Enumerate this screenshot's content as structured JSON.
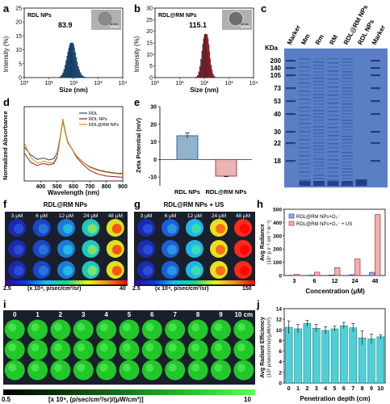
{
  "panels": {
    "a": "a",
    "b": "b",
    "c": "c",
    "d": "d",
    "e": "e",
    "f": "f",
    "g": "g",
    "h": "h",
    "i": "i",
    "j": "j"
  },
  "a": {
    "title": "RDL NPs",
    "peak_label": "83.9",
    "scale_bar": "50 nm",
    "ylabel": "Intensity (%)",
    "xlabel": "Size (nm)",
    "bar_color": "#1f4e79"
  },
  "b": {
    "title": "RDL@RM NPs",
    "peak_label": "115.1",
    "scale_bar": "50 nm",
    "ylabel": "Intensity (%)",
    "xlabel": "Size (nm)",
    "bar_color": "#9b1c1c"
  },
  "c": {
    "kda_label": "KDa",
    "lanes": [
      "Marker",
      "Mm",
      "Rm",
      "RM",
      "RDL@RM NPs",
      "RDL NPs",
      "Marker"
    ],
    "markers": [
      "200",
      "140",
      "105",
      "73",
      "53",
      "40",
      "30",
      "22",
      "18"
    ],
    "gel_color": "#5b7fc4"
  },
  "d": {
    "ylabel": "Normalized Absorbance",
    "xlabel": "Wavelength (nm)",
    "legend": [
      "RDL",
      "RDL NPs",
      "RDL@RM NPs"
    ],
    "colors": [
      "#1f4e79",
      "#9b1c1c",
      "#e08b00"
    ]
  },
  "e": {
    "ylabel": "Zeta Potential (mV)",
    "categories": [
      "RDL NPs",
      "RDL@RM NPs"
    ]
  },
  "f": {
    "title": "RDL@RM NPs",
    "conc_labels": [
      "3 μM",
      "6 μM",
      "12 μM",
      "24 μM",
      "48 μM"
    ],
    "cb_min": "2.5",
    "cb_max": "40",
    "cb_unit": "(x 10⁴, p/sec/cm²/sr)"
  },
  "g": {
    "title": "RDL@RM NPs + US",
    "conc_labels": [
      "3 μM",
      "6 μM",
      "12 μM",
      "24 μM",
      "48 μM"
    ],
    "cb_min": "2.5",
    "cb_max": "150",
    "cb_unit": "(x 10⁴, p/sec/cm²/sr)"
  },
  "h": {
    "ylabel_1": "Avg Radiance",
    "ylabel_2": "(10⁴ p s⁻¹ cm⁻² sr⁻¹)",
    "xlabel": "Concentration (μM)",
    "legend": [
      "RDL@RM NPs+O₂⁻",
      "RDL@RM NPs+O₂⁻ + US"
    ]
  },
  "i": {
    "depth_labels": [
      "0",
      "1",
      "2",
      "3",
      "4",
      "5",
      "6",
      "7",
      "8",
      "9",
      "10 cm"
    ],
    "cb_min": "0.5",
    "cb_max": "10",
    "cb_unit": "[x 10⁹, (p/sec/cm²/sr)/(μW/cm²)]"
  },
  "j": {
    "ylabel_1": "Avg Radiant Efficiency",
    "ylabel_2": "(10⁹ p/sec/cm²/sr)/(μW/cm²)",
    "xlabel": "Penetration depth (cm)"
  },
  "chart_data": [
    {
      "type": "bar",
      "panel": "a",
      "x_scale": "log",
      "xlim": [
        1,
        10000
      ],
      "ylim": [
        0,
        25
      ],
      "x": [
        30,
        35,
        40,
        45,
        50,
        55,
        60,
        65,
        70,
        75,
        80,
        84,
        90,
        95,
        100,
        110,
        120,
        130,
        145,
        160,
        180,
        200,
        230,
        260,
        300
      ],
      "values": [
        0.3,
        0.8,
        1.7,
        3.0,
        4.5,
        6.2,
        7.8,
        9.2,
        10.5,
        11.5,
        12.2,
        12.5,
        12.3,
        11.6,
        10.6,
        9.0,
        7.2,
        5.6,
        4.0,
        2.8,
        1.8,
        1.0,
        0.5,
        0.2,
        0.1
      ],
      "xticks": [
        "10⁰",
        "10¹",
        "10²",
        "10³",
        "10⁴"
      ],
      "yticks": [
        "0",
        "5",
        "10",
        "15",
        "20",
        "25"
      ]
    },
    {
      "type": "bar",
      "panel": "b",
      "x_scale": "log",
      "xlim": [
        1,
        10000
      ],
      "ylim": [
        0,
        30
      ],
      "x": [
        50,
        58,
        65,
        72,
        80,
        88,
        95,
        103,
        110,
        115,
        122,
        130,
        140,
        150,
        160,
        175,
        190,
        210,
        230,
        260
      ],
      "values": [
        0.3,
        1.0,
        2.5,
        4.8,
        8.0,
        11.5,
        14.5,
        16.8,
        18.2,
        18.8,
        18.3,
        16.8,
        14.3,
        11.2,
        8.2,
        5.4,
        3.2,
        1.6,
        0.7,
        0.2
      ],
      "xticks": [
        "10⁰",
        "10¹",
        "10²",
        "10³",
        "10⁴"
      ],
      "yticks": [
        "0",
        "5",
        "10",
        "15",
        "20",
        "25",
        "30"
      ]
    },
    {
      "type": "line",
      "panel": "d",
      "xlim": [
        300,
        900
      ],
      "ylim": [
        0,
        1.2
      ],
      "x": [
        300,
        340,
        380,
        400,
        420,
        450,
        480,
        500,
        520,
        535,
        550,
        565,
        590,
        620,
        660,
        700,
        750,
        800,
        850,
        900
      ],
      "series": [
        {
          "name": "RDL",
          "values": [
            0.55,
            0.42,
            0.35,
            0.36,
            0.37,
            0.34,
            0.36,
            0.45,
            0.72,
            0.97,
            0.78,
            0.62,
            0.52,
            0.4,
            0.3,
            0.23,
            0.18,
            0.15,
            0.13,
            0.12
          ]
        },
        {
          "name": "RDL NPs",
          "values": [
            0.45,
            0.3,
            0.25,
            0.27,
            0.28,
            0.26,
            0.28,
            0.38,
            0.7,
            1.0,
            0.8,
            0.64,
            0.52,
            0.38,
            0.26,
            0.17,
            0.11,
            0.08,
            0.07,
            0.06
          ]
        },
        {
          "name": "RDL@RM NPs",
          "values": [
            0.62,
            0.38,
            0.29,
            0.3,
            0.32,
            0.29,
            0.3,
            0.4,
            0.7,
            0.99,
            0.79,
            0.63,
            0.52,
            0.4,
            0.3,
            0.22,
            0.17,
            0.14,
            0.12,
            0.11
          ]
        }
      ],
      "xticks": [
        "400",
        "500",
        "600",
        "700",
        "800",
        "900"
      ],
      "yticks": [
        "0.0",
        "0.2",
        "0.4",
        "0.6",
        "0.8",
        "1.0",
        "1.2"
      ]
    },
    {
      "type": "bar",
      "panel": "e",
      "categories": [
        "RDL NPs",
        "RDL@RM NPs"
      ],
      "values": [
        13.5,
        -9.5
      ],
      "errors": [
        1.5,
        0.3
      ],
      "ylim": [
        -15,
        30
      ],
      "yticks": [
        "-10",
        "0",
        "10",
        "20",
        "30"
      ]
    },
    {
      "type": "bar",
      "panel": "h",
      "categories": [
        "3",
        "6",
        "12",
        "24",
        "48"
      ],
      "series": [
        {
          "name": "RDL@RM NPs+O₂⁻",
          "values": [
            2,
            3,
            4,
            6,
            24
          ]
        },
        {
          "name": "RDL@RM NPs+O₂⁻ + US",
          "values": [
            8,
            25,
            60,
            125,
            460
          ]
        }
      ],
      "ylim": [
        0,
        500
      ],
      "yticks": [
        "0",
        "100",
        "200",
        "300",
        "400",
        "500"
      ]
    },
    {
      "type": "bar",
      "panel": "j",
      "categories": [
        "0",
        "1",
        "2",
        "3",
        "4",
        "5",
        "6",
        "7",
        "8",
        "9",
        "10"
      ],
      "values": [
        10.5,
        10.2,
        11.2,
        10.3,
        9.9,
        10.2,
        10.8,
        10.4,
        8.5,
        8.3,
        8.7
      ],
      "errors": [
        1.2,
        0.8,
        0.6,
        0.7,
        0.7,
        0.5,
        0.6,
        0.8,
        1.3,
        0.9,
        0.4
      ],
      "ylim": [
        0,
        14
      ],
      "yticks": [
        "0",
        "2",
        "4",
        "6",
        "8",
        "10",
        "12",
        "14"
      ]
    }
  ]
}
